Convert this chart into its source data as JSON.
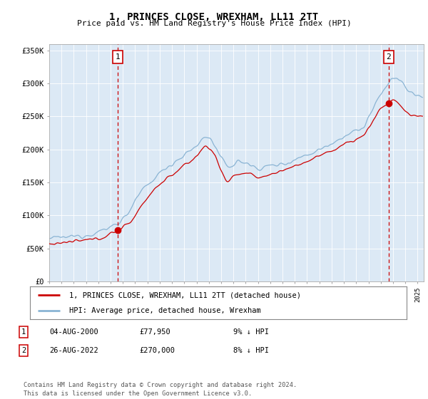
{
  "title": "1, PRINCES CLOSE, WREXHAM, LL11 2TT",
  "subtitle": "Price paid vs. HM Land Registry's House Price Index (HPI)",
  "background_color": "#ffffff",
  "plot_bg_color": "#dce9f5",
  "hpi_color": "#8ab4d4",
  "price_color": "#cc0000",
  "annotation_color": "#cc0000",
  "ylim": [
    0,
    360000
  ],
  "yticks": [
    0,
    50000,
    100000,
    150000,
    200000,
    250000,
    300000,
    350000
  ],
  "ytick_labels": [
    "£0",
    "£50K",
    "£100K",
    "£150K",
    "£200K",
    "£250K",
    "£300K",
    "£350K"
  ],
  "xlim_start": 1995.0,
  "xlim_end": 2025.5,
  "transaction1_date": 2000.59,
  "transaction1_price": 77950,
  "transaction2_date": 2022.65,
  "transaction2_price": 270000,
  "legend_line1": "1, PRINCES CLOSE, WREXHAM, LL11 2TT (detached house)",
  "legend_line2": "HPI: Average price, detached house, Wrexham",
  "transaction1_text": "04-AUG-2000",
  "transaction1_amount": "£77,950",
  "transaction1_hpi": "9% ↓ HPI",
  "transaction2_text": "26-AUG-2022",
  "transaction2_amount": "£270,000",
  "transaction2_hpi": "8% ↓ HPI",
  "footer": "Contains HM Land Registry data © Crown copyright and database right 2024.\nThis data is licensed under the Open Government Licence v3.0."
}
